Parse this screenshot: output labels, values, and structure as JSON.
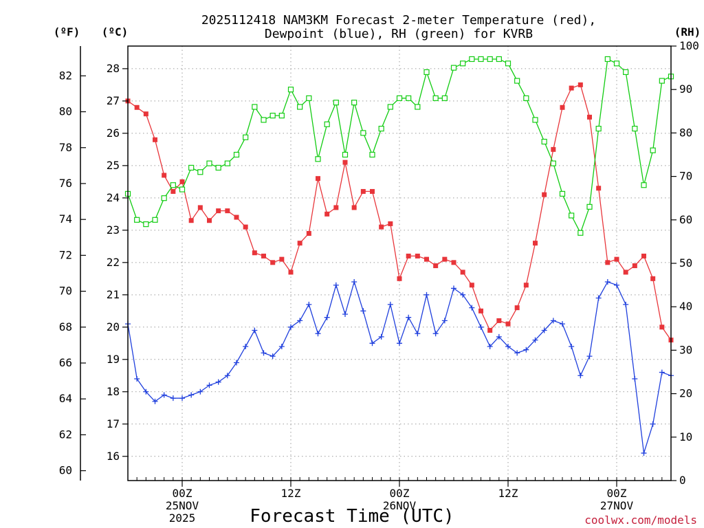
{
  "chart_data": {
    "type": "line",
    "title_lines": [
      "2025112418 NAM3KM Forecast 2-meter Temperature (red),",
      "Dewpoint (blue), RH (green) for KVRB"
    ],
    "xlabel": "Forecast Time (UTC)",
    "credit": "coolwx.com/models",
    "units": {
      "fahrenheit": "(ºF)",
      "celsius": "(ºC)",
      "rh": "(RH)"
    },
    "x_start_hour": 18,
    "x_end_hour": 78,
    "x_ticks": [
      {
        "hour": 24,
        "lines": [
          "00Z",
          "25NOV",
          "2025"
        ]
      },
      {
        "hour": 36,
        "lines": [
          "12Z"
        ]
      },
      {
        "hour": 48,
        "lines": [
          "00Z",
          "26NOV"
        ]
      },
      {
        "hour": 60,
        "lines": [
          "12Z"
        ]
      },
      {
        "hour": 72,
        "lines": [
          "00Z",
          "27NOV"
        ]
      }
    ],
    "celsius_axis": {
      "ylim": [
        15.25,
        28.7
      ],
      "ticks": [
        16,
        17,
        18,
        19,
        20,
        21,
        22,
        23,
        24,
        25,
        26,
        27,
        28
      ]
    },
    "fahrenheit_axis": {
      "ylim": [
        59.45,
        83.66
      ],
      "ticks": [
        60,
        62,
        64,
        66,
        68,
        70,
        72,
        74,
        76,
        78,
        80,
        82
      ]
    },
    "rh_axis": {
      "ylim": [
        0,
        100
      ],
      "ticks": [
        0,
        10,
        20,
        30,
        40,
        50,
        60,
        70,
        80,
        90,
        100
      ]
    },
    "grid": true,
    "series": [
      {
        "name": "Temperature",
        "color": "#e8353a",
        "marker": "filled-square",
        "axis": "celsius",
        "x": [
          18,
          19,
          20,
          21,
          22,
          23,
          24,
          25,
          26,
          27,
          28,
          29,
          30,
          31,
          32,
          33,
          34,
          35,
          36,
          37,
          38,
          39,
          40,
          41,
          42,
          43,
          44,
          45,
          46,
          47,
          48,
          49,
          50,
          51,
          52,
          53,
          54,
          55,
          56,
          57,
          58,
          59,
          60,
          61,
          62,
          63,
          64,
          65,
          66,
          67,
          68,
          69,
          70,
          71,
          72,
          73,
          74,
          75,
          76,
          77,
          78
        ],
        "values": [
          27.0,
          26.8,
          26.6,
          25.8,
          24.7,
          24.2,
          24.5,
          23.3,
          23.7,
          23.3,
          23.6,
          23.6,
          23.4,
          23.1,
          22.3,
          22.2,
          22.0,
          22.1,
          21.7,
          22.6,
          22.9,
          24.6,
          23.5,
          23.7,
          25.1,
          23.7,
          24.2,
          24.2,
          23.1,
          23.2,
          21.5,
          22.2,
          22.2,
          22.1,
          21.9,
          22.1,
          22.0,
          21.7,
          21.3,
          20.5,
          19.9,
          20.2,
          20.1,
          20.6,
          21.3,
          22.6,
          24.1,
          25.5,
          26.8,
          27.4,
          27.5,
          26.5,
          24.3,
          22.0,
          22.1,
          21.7,
          21.9,
          22.2,
          21.5,
          20.0,
          19.6
        ]
      },
      {
        "name": "Dewpoint",
        "color": "#1f3fdd",
        "marker": "plus",
        "axis": "celsius",
        "x": [
          18,
          19,
          20,
          21,
          22,
          23,
          24,
          25,
          26,
          27,
          28,
          29,
          30,
          31,
          32,
          33,
          34,
          35,
          36,
          37,
          38,
          39,
          40,
          41,
          42,
          43,
          44,
          45,
          46,
          47,
          48,
          49,
          50,
          51,
          52,
          53,
          54,
          55,
          56,
          57,
          58,
          59,
          60,
          61,
          62,
          63,
          64,
          65,
          66,
          67,
          68,
          69,
          70,
          71,
          72,
          73,
          74,
          75,
          76,
          77,
          78
        ],
        "values": [
          20.1,
          18.4,
          18.0,
          17.7,
          17.9,
          17.8,
          17.8,
          17.9,
          18.0,
          18.2,
          18.3,
          18.5,
          18.9,
          19.4,
          19.9,
          19.2,
          19.1,
          19.4,
          20.0,
          20.2,
          20.7,
          19.8,
          20.3,
          21.3,
          20.4,
          21.4,
          20.5,
          19.5,
          19.7,
          20.7,
          19.5,
          20.3,
          19.8,
          21.0,
          19.8,
          20.2,
          21.2,
          21.0,
          20.6,
          20.0,
          19.4,
          19.7,
          19.4,
          19.2,
          19.3,
          19.6,
          19.9,
          20.2,
          20.1,
          19.4,
          18.5,
          19.1,
          20.9,
          21.4,
          21.3,
          20.7,
          18.4,
          16.1,
          17.0,
          18.6,
          18.5
        ]
      },
      {
        "name": "RH",
        "color": "#11cc11",
        "marker": "open-square",
        "axis": "rh",
        "x": [
          18,
          19,
          20,
          21,
          22,
          23,
          24,
          25,
          26,
          27,
          28,
          29,
          30,
          31,
          32,
          33,
          34,
          35,
          36,
          37,
          38,
          39,
          40,
          41,
          42,
          43,
          44,
          45,
          46,
          47,
          48,
          49,
          50,
          51,
          52,
          53,
          54,
          55,
          56,
          57,
          58,
          59,
          60,
          61,
          62,
          63,
          64,
          65,
          66,
          67,
          68,
          69,
          70,
          71,
          72,
          73,
          74,
          75,
          76,
          77,
          78
        ],
        "values": [
          66,
          60,
          59,
          60,
          65,
          68,
          67,
          72,
          71,
          73,
          72,
          73,
          75,
          79,
          86,
          83,
          84,
          84,
          90,
          86,
          88,
          74,
          82,
          87,
          75,
          87,
          80,
          75,
          81,
          86,
          88,
          88,
          86,
          94,
          88,
          88,
          95,
          96,
          97,
          97,
          97,
          97,
          96,
          92,
          88,
          83,
          78,
          73,
          66,
          61,
          57,
          63,
          81,
          97,
          96,
          94,
          81,
          68,
          76,
          92,
          93
        ]
      }
    ]
  }
}
